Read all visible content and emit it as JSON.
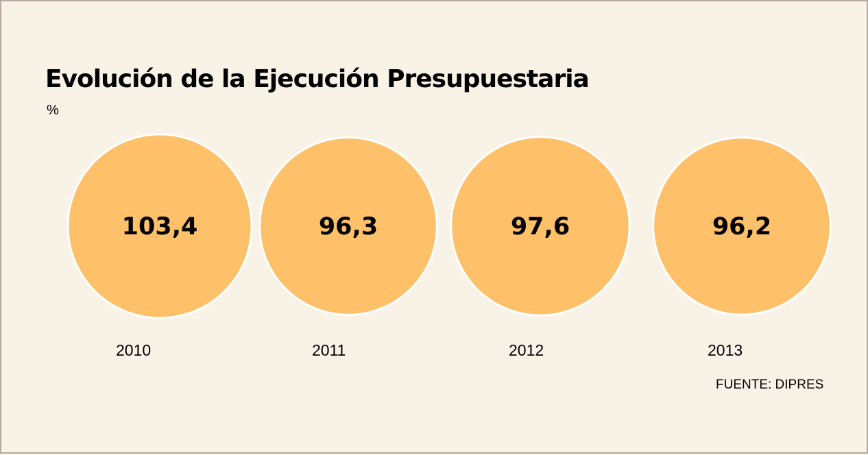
{
  "chart_data": {
    "type": "bubble",
    "title": "Evolución de la Ejecución Presupuestaria",
    "unit": "%",
    "categories": [
      "2010",
      "2011",
      "2012",
      "2013"
    ],
    "values": [
      "103,4",
      "96,3",
      "97,6",
      "96,2"
    ],
    "values_numeric": [
      103.4,
      96.3,
      97.6,
      96.2
    ],
    "source": "FUENTE: DIPRES",
    "colors": {
      "bubble": "#fec068",
      "bubble_outline": "#ffffff",
      "background": "#f9f3e7",
      "border": "#b8aaa3"
    }
  }
}
